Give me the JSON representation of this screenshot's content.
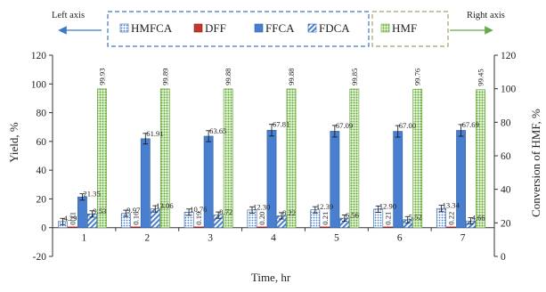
{
  "chart_data": {
    "type": "bar",
    "xlabel": "Time, hr",
    "ylabel_left": "Yield, %",
    "ylabel_right": "Conversion of HMF, %",
    "left_axis_note": "Left axis",
    "right_axis_note": "Right axis",
    "categories": [
      "1",
      "2",
      "3",
      "4",
      "5",
      "6",
      "7"
    ],
    "ylim_left": [
      -20,
      120
    ],
    "ylim_right": [
      0,
      120
    ],
    "yticks_left": [
      "-20",
      "0",
      "20",
      "40",
      "60",
      "80",
      "100",
      "120"
    ],
    "yticks_right": [
      "0",
      "20",
      "40",
      "60",
      "80",
      "100",
      "120"
    ],
    "grid": false,
    "legend_position": "top",
    "series": [
      {
        "name": "HMFCA",
        "axis": "left",
        "pattern": "dots",
        "color": "#4a7fd0",
        "values": [
          4.29,
          9.97,
          10.76,
          12.3,
          12.39,
          12.9,
          13.34
        ],
        "labels": [
          "4.29",
          "9.97",
          "10.76",
          "12.30",
          "12.39",
          "12.90",
          "13.34"
        ]
      },
      {
        "name": "DFF",
        "axis": "left",
        "pattern": "solid",
        "color": "#c0392b",
        "values": [
          0.11,
          0.16,
          0.19,
          0.2,
          0.21,
          0.21,
          0.22
        ],
        "labels": [
          "0.11",
          "0.16",
          "0.19",
          "0.20",
          "0.21",
          "0.21",
          "0.22"
        ]
      },
      {
        "name": "FFCA",
        "axis": "left",
        "pattern": "solid",
        "color": "#4a7fd0",
        "values": [
          21.35,
          61.91,
          63.65,
          67.81,
          67.09,
          67.0,
          67.69
        ],
        "labels": [
          "21.35",
          "61.91",
          "63.65",
          "67.81",
          "67.09",
          "67.00",
          "67.69"
        ]
      },
      {
        "name": "FDCA",
        "axis": "left",
        "pattern": "diagonal",
        "color": "#4a7fd0",
        "values": [
          9.53,
          13.06,
          8.72,
          8.22,
          6.56,
          5.52,
          4.66
        ],
        "labels": [
          "9.53",
          "13.06",
          "8.72",
          "8.22",
          "6.56",
          "5.52",
          "4.66"
        ]
      },
      {
        "name": "HMF",
        "axis": "right",
        "pattern": "dots",
        "color": "#5fa832",
        "values": [
          99.93,
          99.89,
          99.88,
          99.88,
          99.85,
          99.76,
          99.45
        ],
        "labels": [
          "99.93",
          "99.89",
          "99.88",
          "99.88",
          "99.85",
          "99.76",
          "99.45"
        ]
      }
    ]
  }
}
